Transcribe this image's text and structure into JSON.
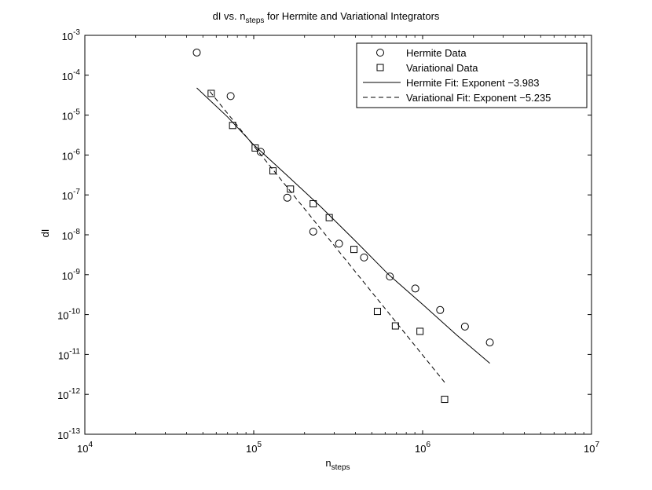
{
  "chart_data": {
    "type": "scatter",
    "title": {
      "main": "dI vs. n",
      "sub": "steps",
      "rest": " for Hermite and Variational Integrators"
    },
    "xlabel": {
      "main": "n",
      "sub": "steps"
    },
    "ylabel": "dI",
    "x_scale": "log",
    "y_scale": "log",
    "xlim": [
      10000,
      10000000
    ],
    "ylim": [
      1e-13,
      0.001
    ],
    "x_ticks": [
      {
        "base": "10",
        "exp": "4",
        "value": 10000
      },
      {
        "base": "10",
        "exp": "5",
        "value": 100000
      },
      {
        "base": "10",
        "exp": "6",
        "value": 1000000
      },
      {
        "base": "10",
        "exp": "7",
        "value": 10000000
      }
    ],
    "y_ticks": [
      {
        "base": "10",
        "exp": "-3",
        "value": 0.001
      },
      {
        "base": "10",
        "exp": "-4",
        "value": 0.0001
      },
      {
        "base": "10",
        "exp": "-5",
        "value": 1e-05
      },
      {
        "base": "10",
        "exp": "-6",
        "value": 1e-06
      },
      {
        "base": "10",
        "exp": "-7",
        "value": 1e-07
      },
      {
        "base": "10",
        "exp": "-8",
        "value": 1e-08
      },
      {
        "base": "10",
        "exp": "-9",
        "value": 1e-09
      },
      {
        "base": "10",
        "exp": "-10",
        "value": 1e-10
      },
      {
        "base": "10",
        "exp": "-11",
        "value": 1e-11
      },
      {
        "base": "10",
        "exp": "-12",
        "value": 1e-12
      },
      {
        "base": "10",
        "exp": "-13",
        "value": 1e-13
      }
    ],
    "grid": false,
    "legend_position": "top-right",
    "series": [
      {
        "name": "Hermite Data",
        "kind": "marker",
        "marker": "circle",
        "color": "#000000",
        "points": [
          [
            46000,
            0.00037
          ],
          [
            73000,
            3e-05
          ],
          [
            110000,
            1.2e-06
          ],
          [
            158000,
            8.5e-08
          ],
          [
            225000,
            1.2e-08
          ],
          [
            320000,
            6e-09
          ],
          [
            450000,
            2.7e-09
          ],
          [
            640000,
            9e-10
          ],
          [
            905000,
            4.5e-10
          ],
          [
            1270000,
            1.3e-10
          ],
          [
            1780000,
            5e-11
          ],
          [
            2500000,
            2e-11
          ]
        ]
      },
      {
        "name": "Variational Data",
        "kind": "marker",
        "marker": "square",
        "color": "#000000",
        "points": [
          [
            56000,
            3.5e-05
          ],
          [
            75000,
            5.5e-06
          ],
          [
            102000,
            1.5e-06
          ],
          [
            130000,
            4e-07
          ],
          [
            165000,
            1.4e-07
          ],
          [
            225000,
            6e-08
          ],
          [
            280000,
            2.7e-08
          ],
          [
            392000,
            4.3e-09
          ],
          [
            540000,
            1.2e-10
          ],
          [
            690000,
            5.2e-11
          ],
          [
            965000,
            3.8e-11
          ],
          [
            1350000,
            7.5e-13
          ]
        ]
      },
      {
        "name": "Hermite Fit: Exponent −3.983",
        "kind": "line",
        "dash": "solid",
        "color": "#000000",
        "points": [
          [
            46000,
            4.8e-05
          ],
          [
            70000,
            9e-06
          ],
          [
            100000,
            1.8e-06
          ],
          [
            160000,
            2.9e-07
          ],
          [
            250000,
            5e-08
          ],
          [
            400000,
            7e-09
          ],
          [
            630000,
            1e-09
          ],
          [
            1000000,
            1.8e-10
          ],
          [
            1600000,
            3e-11
          ],
          [
            2500000,
            6e-12
          ]
        ]
      },
      {
        "name": "Variational Fit: Exponent −5.235",
        "kind": "line",
        "dash": "dashed",
        "color": "#000000",
        "points": [
          [
            55000,
            3.9e-05
          ],
          [
            1350000,
            2e-12
          ]
        ]
      }
    ]
  }
}
